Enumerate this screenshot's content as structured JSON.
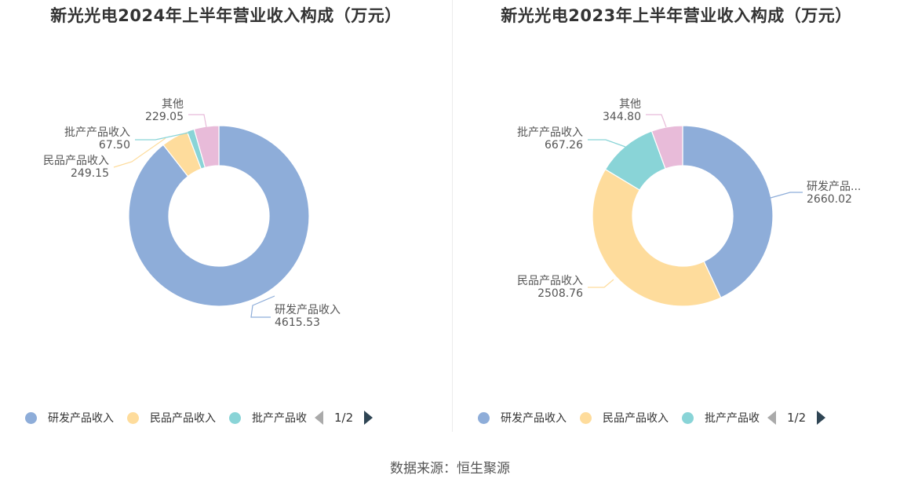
{
  "colors": {
    "研发产品收入": "#8eadd9",
    "民品产品收入": "#fedc9c",
    "批产产品收入": "#89d4d7",
    "其他": "#e8bbd9"
  },
  "chart_data": [
    {
      "type": "pie",
      "variant": "donut",
      "title": "新光光电2024年上半年营业收入构成（万元）",
      "categories": [
        "研发产品收入",
        "民品产品收入",
        "批产产品收入",
        "其他"
      ],
      "values": [
        4615.53,
        249.15,
        67.5,
        229.05
      ],
      "value_labels": [
        "4615.53",
        "249.15",
        "67.50",
        "229.05"
      ],
      "slice_label_names": [
        "研发产品收入",
        "民品产品收入",
        "批产产品收入",
        "其他"
      ],
      "legend": {
        "position": "bottom",
        "items": [
          "研发产品收入",
          "民品产品收入",
          "批产产品收"
        ],
        "page": "1/2"
      }
    },
    {
      "type": "pie",
      "variant": "donut",
      "title": "新光光电2023年上半年营业收入构成（万元）",
      "categories": [
        "研发产品收入",
        "民品产品收入",
        "批产产品收入",
        "其他"
      ],
      "values": [
        2660.02,
        2508.76,
        667.26,
        344.8
      ],
      "value_labels": [
        "2660.02",
        "2508.76",
        "667.26",
        "344.80"
      ],
      "slice_label_names": [
        "研发产品...",
        "民品产品收入",
        "批产产品收入",
        "其他"
      ],
      "legend": {
        "position": "bottom",
        "items": [
          "研发产品收入",
          "民品产品收入",
          "批产产品收"
        ],
        "page": "1/2"
      }
    }
  ],
  "source": "数据来源：恒生聚源"
}
